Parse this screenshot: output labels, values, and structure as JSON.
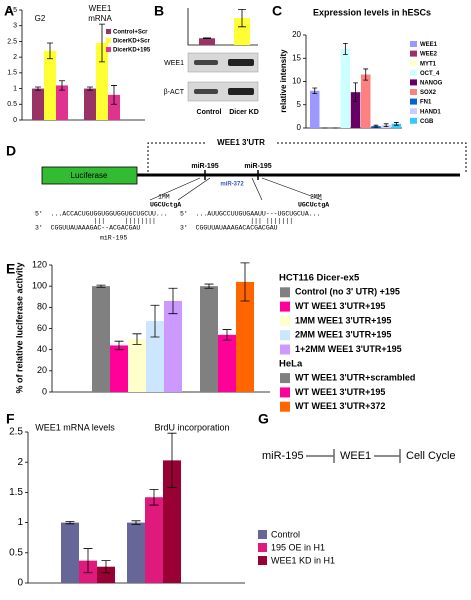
{
  "chart_data": [
    {
      "type": "bar",
      "panel_label": "A",
      "annotations": [
        "G2",
        "WEE1",
        "mRNA"
      ],
      "categories": [
        null,
        null
      ],
      "series": [
        {
          "name": "Control+Scr",
          "color": "#993366",
          "values": [
            1,
            1
          ],
          "errors": [
            0.05,
            0.05
          ]
        },
        {
          "name": "DicerKD+Scr",
          "color": "#ffff33",
          "values": [
            2.2,
            2.45
          ],
          "errors": [
            0.25,
            0.6
          ]
        },
        {
          "name": "DicerKD+195",
          "color": "#e0338f",
          "values": [
            1.1,
            0.8
          ],
          "errors": [
            0.15,
            0.3
          ]
        }
      ],
      "ylim": [
        0,
        3.5
      ],
      "yticks": [
        0,
        0.5,
        1,
        1.5,
        2,
        2.5,
        3,
        3.5
      ],
      "legend": "upper right"
    },
    {
      "type": "bar",
      "panel_label": "B",
      "categories": [
        "Control",
        "Dicer KD"
      ],
      "values": [
        1,
        4
      ],
      "errors": [
        0.05,
        1.3
      ],
      "colors": [
        "#993366",
        "#ffff33"
      ],
      "ylim": [
        0,
        5.5
      ],
      "blot_labels": [
        "WEE1",
        "β-ACT"
      ]
    },
    {
      "type": "bar",
      "panel_label": "C",
      "title": "Expression levels in hESCs",
      "ylabel": "relative intensity",
      "categories": [
        "WEE1",
        "WEE2",
        "MYT1",
        "OCT_4",
        "NANOG",
        "SOX2",
        "FN1",
        "HAND1",
        "CGB"
      ],
      "values": [
        8,
        0,
        0,
        17,
        7.7,
        11.5,
        0.4,
        0.6,
        0.9
      ],
      "errors": [
        0.6,
        0,
        0,
        1.2,
        2,
        1.2,
        0.2,
        0.3,
        0.3
      ],
      "colors": [
        "#9999ff",
        "#993366",
        "#ffffcc",
        "#ccffff",
        "#660066",
        "#ff8080",
        "#0066cc",
        "#ccccff",
        "#33ccff"
      ],
      "ylim": [
        0,
        20
      ],
      "yticks": [
        0,
        5,
        10,
        15,
        20
      ],
      "legend": "right"
    },
    {
      "type": "grouped_bar",
      "panel_label": "E",
      "ylabel": "% of relative luciferase activity",
      "groups": [
        {
          "name": "HCT116 Dicer-ex5",
          "series": [
            {
              "name": "Control (no 3' UTR) +195",
              "color": "#808080",
              "value": 100,
              "error": 1
            },
            {
              "name": "WT WEE1 3'UTR+195",
              "color": "#ff0099",
              "value": 44,
              "error": 4
            },
            {
              "name": "1MM WEE1 3'UTR+195",
              "color": "#ffffcc",
              "value": 50,
              "error": 5
            },
            {
              "name": "2MM WEE1 3'UTR+195",
              "color": "#cce6ff",
              "value": 67,
              "error": 15
            },
            {
              "name": "1+2MM WEE1 3'UTR+195",
              "color": "#cc99ff",
              "value": 86,
              "error": 12
            }
          ]
        },
        {
          "name": "HeLa",
          "series": [
            {
              "name": "WT WEE1 3'UTR+scrambled",
              "color": "#808080",
              "value": 100,
              "error": 2
            },
            {
              "name": "WT WEE1 3'UTR+195",
              "color": "#ff0099",
              "value": 54,
              "error": 5
            },
            {
              "name": "WT WEE1 3'UTR+372",
              "color": "#ff6600",
              "value": 104,
              "error": 18
            }
          ]
        }
      ],
      "ylim": [
        0,
        120
      ],
      "yticks": [
        0,
        20,
        40,
        60,
        80,
        100,
        120
      ],
      "legend": "right"
    },
    {
      "type": "bar",
      "panel_label": "F",
      "categories": [
        "WEE1 mRNA levels",
        "BrdU incorporation"
      ],
      "series": [
        {
          "name": "Control",
          "color": "#666699",
          "values": [
            1,
            1
          ],
          "errors": [
            0.02,
            0.03
          ]
        },
        {
          "name": "195 OE in H1",
          "color": "#e0197d",
          "values": [
            0.37,
            1.42
          ],
          "errors": [
            0.2,
            0.13
          ]
        },
        {
          "name": "WEE1 KD in H1",
          "color": "#990033",
          "values": [
            0.27,
            2.03
          ],
          "errors": [
            0.1,
            0.45
          ]
        }
      ],
      "ylim": [
        0,
        2.5
      ],
      "yticks": [
        0,
        0.5,
        1,
        1.5,
        2,
        2.5
      ],
      "legend": "lower right"
    }
  ],
  "diagram_d": {
    "panel_label": "D",
    "luciferase": "Luciferase",
    "utr": "WEE1 3'UTR",
    "sites": [
      "miR-195",
      "miR-372",
      "miR-195"
    ],
    "left": {
      "mm": "1MM",
      "mm_seq": "UGCUctgA",
      "target": "5'  ...ACCACUGUGGUGGUGGUGCUGCUU...",
      "pairs": "               |||     ||||||||",
      "mir": "3'  CGGUUAUAAAGAC--ACGACGAU",
      "mir_name": "miR-195"
    },
    "right": {
      "mm": "2MM",
      "mm_seq": "UGCUctgA",
      "target": "5'  ...AUUGCCUUGUGAAUU---UGCUGCUA...",
      "pairs": "                  ||| |||||||",
      "mir": "3'  CGGUUAUAAAGACACGACGAU"
    }
  },
  "diagram_g": {
    "panel_label": "G",
    "nodes": [
      "miR-195",
      "WEE1",
      "Cell Cycle"
    ]
  }
}
